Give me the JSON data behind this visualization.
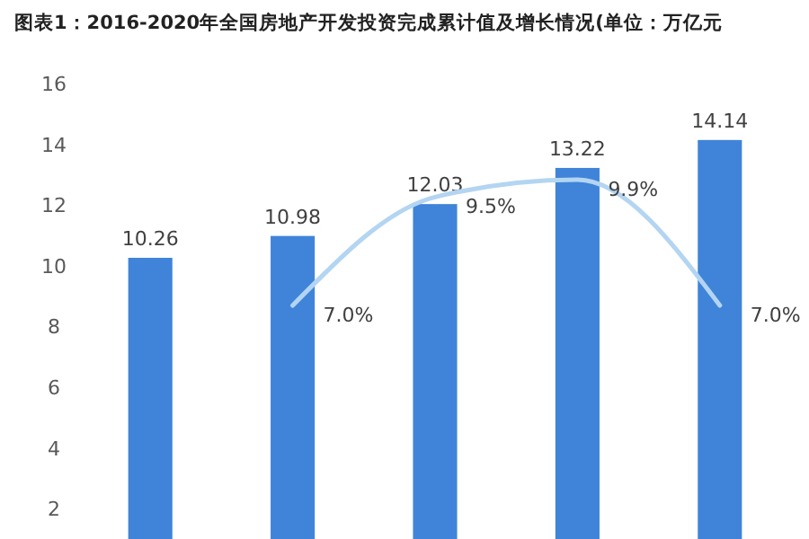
{
  "chart_data": [
    {
      "type": "bar",
      "title": "图表1：2016-2020年全国房地产开发投资完成累计值及增长情况(单位：万亿元",
      "categories": [
        null,
        null,
        null,
        null,
        null
      ],
      "color": "#3f84d9",
      "values": [
        10.26,
        10.98,
        12.03,
        13.22,
        14.14
      ],
      "data_labels": true,
      "ylim": [
        1,
        18.75
      ],
      "yticks": [
        2,
        4,
        6,
        8,
        10,
        12,
        14,
        16
      ],
      "tick_labels": "y"
    },
    {
      "type": "line",
      "categories": [
        null,
        null,
        null,
        null,
        null
      ],
      "color": "#b3d5f2",
      "values": [
        null,
        7.0,
        9.5,
        9.9,
        7.0
      ],
      "value_labels": [
        null,
        "7.0%",
        "9.5%",
        "9.9%",
        "7.0%"
      ],
      "tick_labels": false
    }
  ]
}
